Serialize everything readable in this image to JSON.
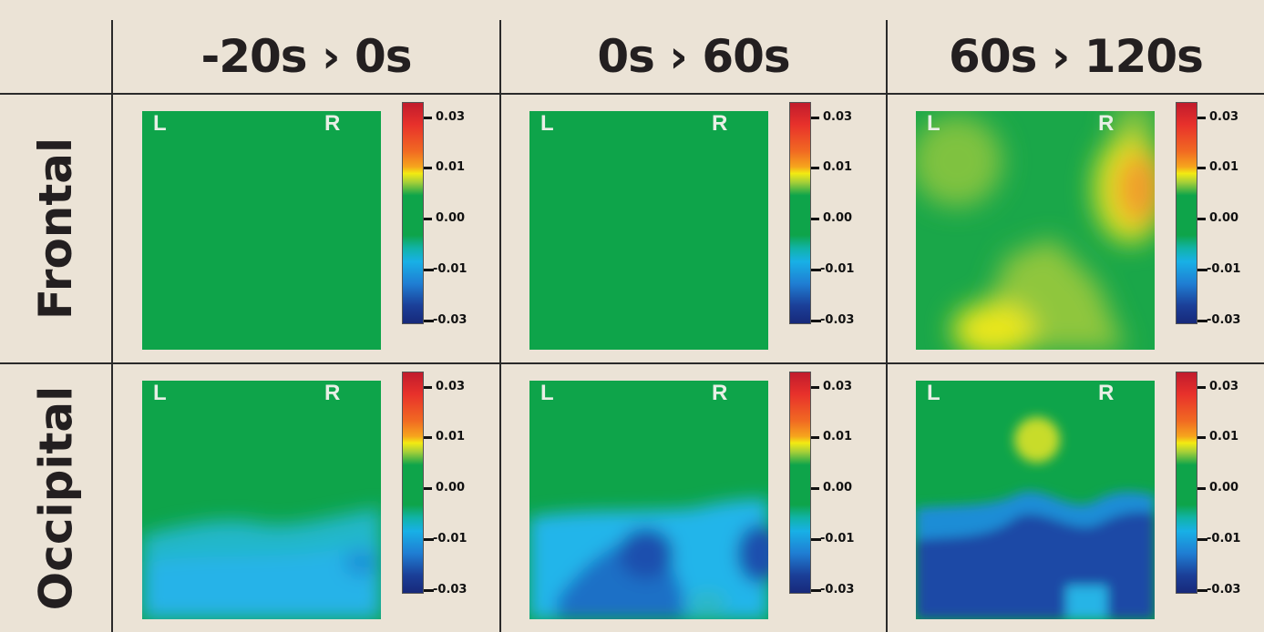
{
  "columns": [
    "-20s › 0s",
    "0s › 60s",
    "60s › 120s"
  ],
  "rows": [
    "Frontal",
    "Occipital"
  ],
  "side_labels": {
    "left": "L",
    "right": "R"
  },
  "colorbar": {
    "ticks": [
      "0.03",
      "0.01",
      "0.00",
      "-0.01",
      "-0.03"
    ],
    "colors": [
      "#c11b2c",
      "#f6a51d",
      "#f3ea12",
      "#0ea44a",
      "#18b0e6",
      "#1b3f98"
    ]
  },
  "colors": {
    "background": "#ebe3d6",
    "neutral": "#0ea44a",
    "positive": "#f3ea12",
    "high": "#f16a22",
    "negative": "#18b0e6",
    "strong_negative": "#1b3f98"
  }
}
